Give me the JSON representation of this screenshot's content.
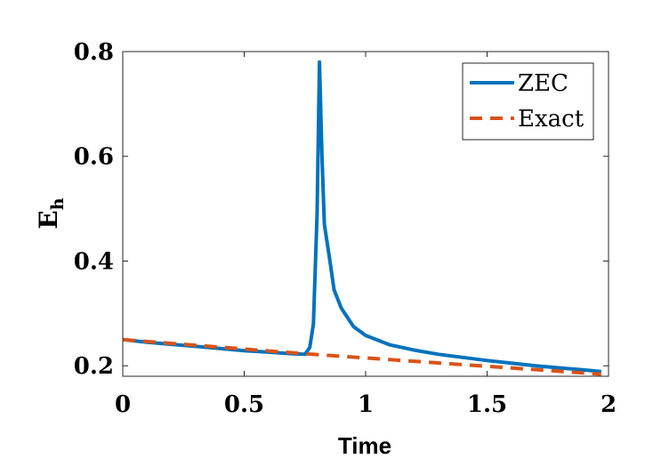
{
  "chart_data": {
    "type": "line",
    "title": "",
    "xlabel": "Time",
    "ylabel": {
      "main": "E",
      "sub": "h"
    },
    "xlim": [
      0,
      2
    ],
    "ylim": [
      0.18,
      0.8
    ],
    "xticks": [
      0,
      0.5,
      1,
      1.5,
      2
    ],
    "xtick_labels": [
      "0",
      "0.5",
      "1",
      "1.5",
      "2"
    ],
    "yticks": [
      0.2,
      0.4,
      0.6,
      0.8
    ],
    "ytick_labels": [
      "0.2",
      "0.4",
      "0.6",
      "0.8"
    ],
    "grid": false,
    "legend_position": "top-right",
    "series": [
      {
        "name": "ZEC",
        "color": "#0072BD",
        "style": "solid",
        "x": [
          0,
          0.1,
          0.2,
          0.3,
          0.4,
          0.5,
          0.6,
          0.7,
          0.75,
          0.77,
          0.785,
          0.8,
          0.81,
          0.82,
          0.83,
          0.85,
          0.87,
          0.9,
          0.95,
          1.0,
          1.1,
          1.2,
          1.3,
          1.4,
          1.5,
          1.6,
          1.7,
          1.8,
          1.9,
          1.97
        ],
        "y": [
          0.25,
          0.245,
          0.241,
          0.237,
          0.233,
          0.229,
          0.226,
          0.223,
          0.222,
          0.235,
          0.28,
          0.49,
          0.78,
          0.6,
          0.47,
          0.41,
          0.345,
          0.31,
          0.275,
          0.258,
          0.24,
          0.23,
          0.222,
          0.216,
          0.21,
          0.205,
          0.2,
          0.196,
          0.192,
          0.189
        ]
      },
      {
        "name": "Exact",
        "color": "#D95319",
        "style": "dashed",
        "x": [
          0,
          0.25,
          0.5,
          0.75,
          1.0,
          1.25,
          1.5,
          1.75,
          1.97
        ],
        "y": [
          0.25,
          0.241,
          0.232,
          0.223,
          0.215,
          0.207,
          0.199,
          0.191,
          0.184
        ]
      }
    ]
  }
}
